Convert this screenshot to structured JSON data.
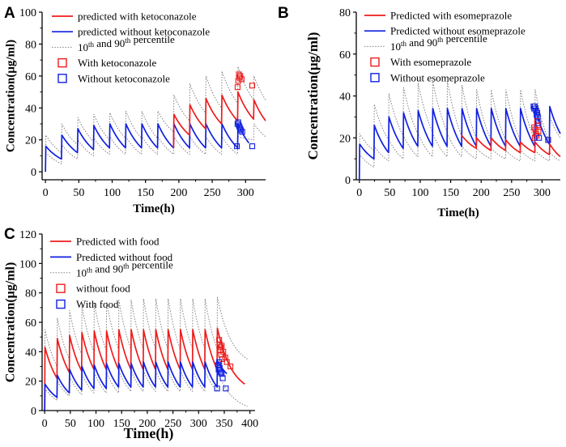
{
  "colors": {
    "red": "#ee1c1c",
    "blue": "#1020e0",
    "grey": "#808080",
    "axis": "#000000"
  },
  "chart_data": [
    {
      "panel": "A",
      "type": "line",
      "xlabel": "Time(h)",
      "ylabel": "Concentration(μg/ml)",
      "xlim": [
        -5,
        330
      ],
      "ylim": [
        -5,
        100
      ],
      "xticks": [
        0,
        50,
        100,
        150,
        200,
        250,
        300
      ],
      "yticks": [
        0,
        20,
        40,
        60,
        80,
        100
      ],
      "legend": {
        "location": "top-left",
        "entries": [
          {
            "kind": "line",
            "color": "red",
            "parts": [
              "predicted with ketoconazole"
            ]
          },
          {
            "kind": "line",
            "color": "blue",
            "parts": [
              "predicted without ketoconazole"
            ]
          },
          {
            "kind": "dotted",
            "color": "grey",
            "parts": [
              "10",
              "th",
              " and 90",
              "th",
              " percentile"
            ]
          },
          {
            "kind": "square",
            "color": "red",
            "parts": [
              "With ketoconazole"
            ]
          },
          {
            "kind": "square",
            "color": "blue",
            "parts": [
              "Without  ketoconazole"
            ]
          }
        ]
      },
      "series": [
        {
          "name": "predicted without ketoconazole",
          "color": "blue",
          "style": "solid",
          "dose_times": [
            0,
            24,
            48,
            72,
            96,
            120,
            144,
            168,
            192,
            216,
            240,
            264,
            288
          ],
          "peaks": [
            16,
            23,
            27,
            29,
            30,
            30,
            30,
            30,
            30,
            30,
            30,
            30,
            30
          ],
          "troughs": [
            8,
            12,
            14,
            15,
            15,
            15,
            15,
            15,
            15,
            15,
            15,
            15
          ],
          "end_time": 305,
          "end_value": 18
        },
        {
          "name": "predicted with ketoconazole",
          "color": "red",
          "style": "solid",
          "start_time": 192,
          "start_value": 15,
          "dose_times": [
            192,
            216,
            240,
            264,
            288,
            312
          ],
          "peaks": [
            36,
            42,
            46,
            48,
            50,
            45
          ],
          "troughs": [
            23,
            27,
            30,
            32,
            33
          ],
          "end_time": 330,
          "end_value": 32
        },
        {
          "name": "90th percentile",
          "color": "grey",
          "style": "dotted",
          "dose_times": [
            0,
            24,
            48,
            72,
            96,
            120,
            144,
            168,
            192,
            216,
            240,
            264,
            288,
            312
          ],
          "peaks": [
            23,
            30,
            34,
            36,
            37,
            38,
            38,
            38,
            48,
            55,
            60,
            63,
            66,
            60
          ],
          "troughs": [
            12,
            17,
            19,
            20,
            21,
            21,
            21,
            25,
            32,
            37,
            40,
            43,
            45
          ],
          "end_time": 330,
          "end_value": 45
        },
        {
          "name": "10th percentile",
          "color": "grey",
          "style": "dotted",
          "dose_times": [
            0,
            24,
            48,
            72,
            96,
            120,
            144,
            168,
            192,
            216,
            240,
            264,
            288,
            312
          ],
          "peaks": [
            12,
            17,
            20,
            21,
            22,
            22,
            22,
            22,
            22,
            22,
            22,
            22,
            22,
            30
          ],
          "troughs": [
            5,
            8,
            10,
            11,
            11,
            11,
            11,
            11,
            11,
            11,
            11,
            11,
            20
          ],
          "end_time": 330,
          "end_value": 22
        }
      ],
      "observations": [
        {
          "name": "With ketoconazole",
          "color": "red",
          "points": [
            [
              288,
              53
            ],
            [
              289,
              57
            ],
            [
              290,
              61
            ],
            [
              291,
              59
            ],
            [
              292,
              60
            ],
            [
              294,
              58
            ],
            [
              310,
              54
            ]
          ]
        },
        {
          "name": "Without  ketoconazole",
          "color": "blue",
          "points": [
            [
              287,
              16
            ],
            [
              288,
              30
            ],
            [
              289,
              31
            ],
            [
              290,
              29
            ],
            [
              291,
              28
            ],
            [
              292,
              27
            ],
            [
              293,
              26
            ],
            [
              295,
              25
            ],
            [
              310,
              16
            ]
          ]
        }
      ]
    },
    {
      "panel": "B",
      "type": "line",
      "xlabel": "Time(h)",
      "ylabel": "Concentration(μg/ml)",
      "xlim": [
        -5,
        330
      ],
      "ylim": [
        0,
        80
      ],
      "xticks": [
        0,
        50,
        100,
        150,
        200,
        250,
        300
      ],
      "yticks": [
        0,
        20,
        40,
        60,
        80
      ],
      "legend": {
        "location": "top-left",
        "entries": [
          {
            "kind": "line",
            "color": "red",
            "parts": [
              "Predicted with esomeprazole"
            ]
          },
          {
            "kind": "line",
            "color": "blue",
            "parts": [
              "Predicted without esomeprazole"
            ]
          },
          {
            "kind": "dotted",
            "color": "grey",
            "parts": [
              "10",
              "th",
              " and 90",
              "th",
              " percentile"
            ]
          },
          {
            "kind": "square",
            "color": "red",
            "parts": [
              "With esomeprazole"
            ]
          },
          {
            "kind": "square",
            "color": "blue",
            "parts": [
              "Without  esomeprazole"
            ]
          }
        ]
      },
      "series": [
        {
          "name": "Predicted without esomeprazole",
          "color": "blue",
          "style": "solid",
          "dose_times": [
            0,
            24,
            48,
            72,
            96,
            120,
            144,
            168,
            192,
            216,
            240,
            264,
            288,
            312
          ],
          "peaks": [
            17,
            26,
            30,
            32,
            33,
            34,
            34,
            34,
            34,
            34,
            34,
            34,
            34,
            35
          ],
          "troughs": [
            10,
            13,
            15,
            16,
            16,
            16,
            16,
            16,
            16,
            16,
            16,
            16,
            17
          ],
          "end_time": 330,
          "end_value": 22
        },
        {
          "name": "Predicted with esomeprazole",
          "color": "red",
          "style": "solid",
          "start_time": 168,
          "start_value": 21,
          "dose_times": [
            168,
            192,
            216,
            240,
            264,
            288,
            312
          ],
          "peaks": [
            21,
            20,
            20,
            19,
            18,
            18,
            17
          ],
          "troughs": [
            15,
            14,
            14,
            13,
            13,
            12
          ],
          "end_time": 330,
          "end_value": 11
        },
        {
          "name": "90th percentile",
          "color": "grey",
          "style": "dotted",
          "dose_times": [
            0,
            24,
            48,
            72,
            96,
            120,
            144,
            168,
            192,
            216,
            240,
            264,
            288,
            312
          ],
          "peaks": [
            22,
            36,
            41,
            44,
            46,
            47,
            47,
            45,
            43,
            43,
            43,
            43,
            43,
            30
          ],
          "troughs": [
            14,
            19,
            21,
            22,
            23,
            23,
            21,
            20,
            19,
            19,
            19,
            19,
            18
          ],
          "end_time": 330,
          "end_value": 20
        },
        {
          "name": "10th percentile",
          "color": "grey",
          "style": "dotted",
          "dose_times": [
            0,
            24,
            48,
            72,
            96,
            120,
            144,
            168,
            192,
            216,
            240,
            264,
            288,
            312
          ],
          "peaks": [
            12,
            16,
            19,
            21,
            22,
            22,
            22,
            16,
            15,
            15,
            14,
            14,
            14,
            13
          ],
          "troughs": [
            6,
            9,
            10,
            11,
            11,
            11,
            11,
            10,
            10,
            10,
            9,
            9,
            9
          ],
          "end_time": 330,
          "end_value": 9
        }
      ],
      "observations": [
        {
          "name": "With esomeprazole",
          "color": "red",
          "points": [
            [
              287,
              25
            ],
            [
              288,
              20
            ],
            [
              289,
              24
            ],
            [
              290,
              22
            ],
            [
              291,
              21
            ],
            [
              292,
              28
            ],
            [
              293,
              26
            ],
            [
              294,
              23
            ],
            [
              310,
              19
            ]
          ]
        },
        {
          "name": "Without  esomeprazole",
          "color": "blue",
          "points": [
            [
              286,
              35
            ],
            [
              287,
              34
            ],
            [
              288,
              35
            ],
            [
              289,
              34
            ],
            [
              290,
              33
            ],
            [
              291,
              31
            ],
            [
              292,
              32
            ],
            [
              293,
              30
            ],
            [
              294,
              27
            ],
            [
              295,
              20
            ],
            [
              310,
              19
            ]
          ]
        }
      ]
    },
    {
      "panel": "C",
      "type": "line",
      "xlabel": "Time(h)",
      "ylabel": "Concentration(μg/ml)",
      "xlim": [
        -5,
        410
      ],
      "ylim": [
        0,
        120
      ],
      "xticks": [
        0,
        50,
        100,
        150,
        200,
        250,
        300,
        350,
        400
      ],
      "yticks": [
        0,
        20,
        40,
        60,
        80,
        100,
        120
      ],
      "legend": {
        "location": "top-left",
        "entries": [
          {
            "kind": "line",
            "color": "red",
            "parts": [
              "Predicted with food"
            ]
          },
          {
            "kind": "line",
            "color": "blue",
            "parts": [
              "Predicted without food"
            ]
          },
          {
            "kind": "dotted",
            "color": "grey",
            "parts": [
              "10",
              "th",
              " and 90",
              "th",
              " percentile"
            ]
          },
          {
            "kind": "square",
            "color": "red",
            "parts": [
              "without food"
            ]
          },
          {
            "kind": "square",
            "color": "blue",
            "parts": [
              "With food"
            ]
          }
        ]
      },
      "series": [
        {
          "name": "Predicted with food",
          "color": "red",
          "style": "solid",
          "dose_times": [
            0,
            24,
            48,
            72,
            96,
            120,
            144,
            168,
            192,
            216,
            240,
            264,
            288,
            312,
            336
          ],
          "peaks": [
            43,
            49,
            51,
            53,
            54,
            54,
            55,
            55,
            55,
            55,
            55,
            55,
            55,
            55,
            56
          ],
          "troughs": [
            22,
            26,
            27,
            28,
            28,
            28,
            28,
            28,
            28,
            28,
            28,
            28,
            28,
            28
          ],
          "end_time": 390,
          "end_value": 18
        },
        {
          "name": "Predicted without food",
          "color": "blue",
          "style": "solid",
          "dose_times": [
            0,
            24,
            48,
            72,
            96,
            120,
            144,
            168,
            192,
            216,
            240,
            264,
            288,
            312,
            336
          ],
          "peaks": [
            18,
            24,
            28,
            30,
            31,
            32,
            32,
            32,
            33,
            33,
            33,
            33,
            33,
            33,
            34
          ],
          "troughs": [
            9,
            12,
            14,
            15,
            15,
            16,
            16,
            16,
            16,
            16,
            16,
            16,
            16,
            16
          ],
          "end_time": 355,
          "end_value": 25
        },
        {
          "name": "90th percentile",
          "color": "grey",
          "style": "dotted",
          "dose_times": [
            0,
            24,
            48,
            72,
            96,
            120,
            144,
            168,
            192,
            216,
            240,
            264,
            288,
            312,
            336
          ],
          "peaks": [
            55,
            63,
            68,
            71,
            73,
            74,
            75,
            75,
            76,
            76,
            76,
            76,
            76,
            76,
            77
          ],
          "troughs": [
            30,
            35,
            38,
            40,
            41,
            42,
            42,
            42,
            42,
            42,
            42,
            42,
            42,
            42
          ],
          "end_time": 395,
          "end_value": 35
        },
        {
          "name": "10th percentile",
          "color": "grey",
          "style": "dotted",
          "dose_times": [
            0,
            24,
            48,
            72,
            96,
            120,
            144,
            168,
            192,
            216,
            240,
            264,
            288,
            312,
            336
          ],
          "peaks": [
            15,
            20,
            23,
            25,
            26,
            26,
            27,
            27,
            27,
            27,
            27,
            27,
            27,
            27,
            27
          ],
          "troughs": [
            7,
            10,
            11,
            12,
            12,
            12,
            13,
            13,
            13,
            13,
            13,
            13,
            13,
            13
          ],
          "end_time": 395,
          "end_value": 3
        }
      ],
      "observations": [
        {
          "name": "without food",
          "color": "red",
          "points": [
            [
              340,
              48
            ],
            [
              341,
              45
            ],
            [
              342,
              41
            ],
            [
              343,
              43
            ],
            [
              344,
              38
            ],
            [
              345,
              44
            ],
            [
              346,
              35
            ],
            [
              348,
              40
            ],
            [
              352,
              36
            ],
            [
              355,
              33
            ],
            [
              362,
              30
            ]
          ]
        },
        {
          "name": "With food",
          "color": "blue",
          "points": [
            [
              336,
              15
            ],
            [
              338,
              31
            ],
            [
              339,
              28
            ],
            [
              340,
              33
            ],
            [
              341,
              29
            ],
            [
              342,
              27
            ],
            [
              343,
              26
            ],
            [
              345,
              25
            ],
            [
              347,
              22
            ],
            [
              353,
              15
            ]
          ]
        }
      ]
    }
  ]
}
